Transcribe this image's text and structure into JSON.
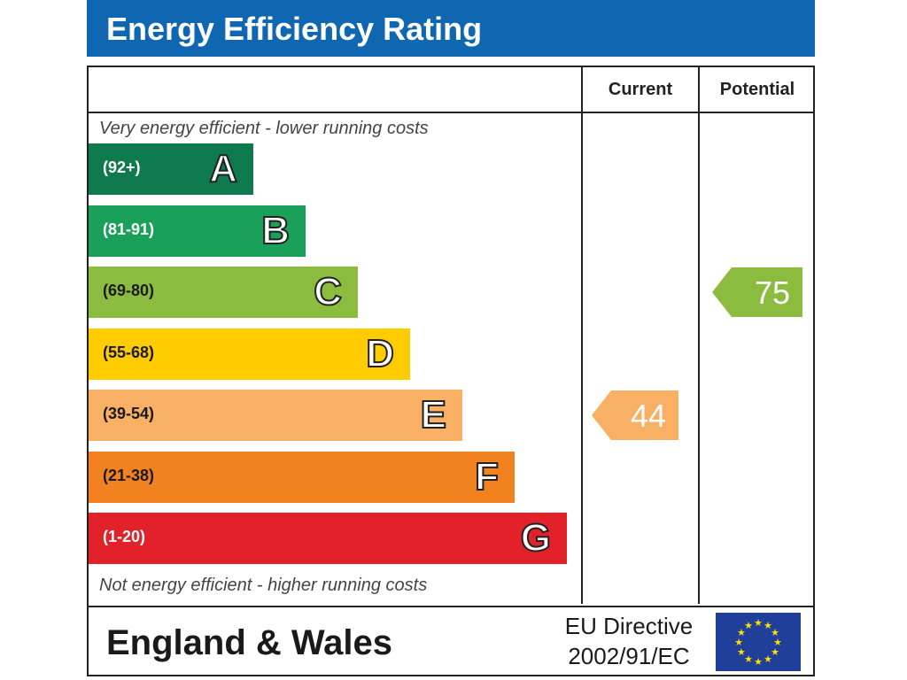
{
  "header": {
    "title": "Energy Efficiency Rating"
  },
  "columns": {
    "current": "Current",
    "potential": "Potential"
  },
  "notes": {
    "top": "Very energy efficient - lower running costs",
    "bottom": "Not energy efficient - higher running costs"
  },
  "bands": [
    {
      "letter": "A",
      "range": "(92+)",
      "color": "#0f7a4e"
    },
    {
      "letter": "B",
      "range": "(81-91)",
      "color": "#1ba05a"
    },
    {
      "letter": "C",
      "range": "(69-80)",
      "color": "#8cbc3f"
    },
    {
      "letter": "D",
      "range": "(55-68)",
      "color": "#ffcc00"
    },
    {
      "letter": "E",
      "range": "(39-54)",
      "color": "#f7b064"
    },
    {
      "letter": "F",
      "range": "(21-38)",
      "color": "#f1821f"
    },
    {
      "letter": "G",
      "range": "(1-20)",
      "color": "#e3212b"
    }
  ],
  "ratings": {
    "current": {
      "value": "44",
      "band": "E",
      "color": "#f7b064"
    },
    "potential": {
      "value": "75",
      "band": "C",
      "color": "#8cbc3f"
    }
  },
  "footer": {
    "country": "England & Wales",
    "directive_line1": "EU Directive",
    "directive_line2": "2002/91/EC"
  },
  "chart_data": {
    "type": "bar",
    "categories": [
      "A",
      "B",
      "C",
      "D",
      "E",
      "F",
      "G"
    ],
    "ranges": [
      "(92+)",
      "(81-91)",
      "(69-80)",
      "(55-68)",
      "(39-54)",
      "(21-38)",
      "(1-20)"
    ],
    "title": "Energy Efficiency Rating",
    "current": 44,
    "potential": 75
  }
}
